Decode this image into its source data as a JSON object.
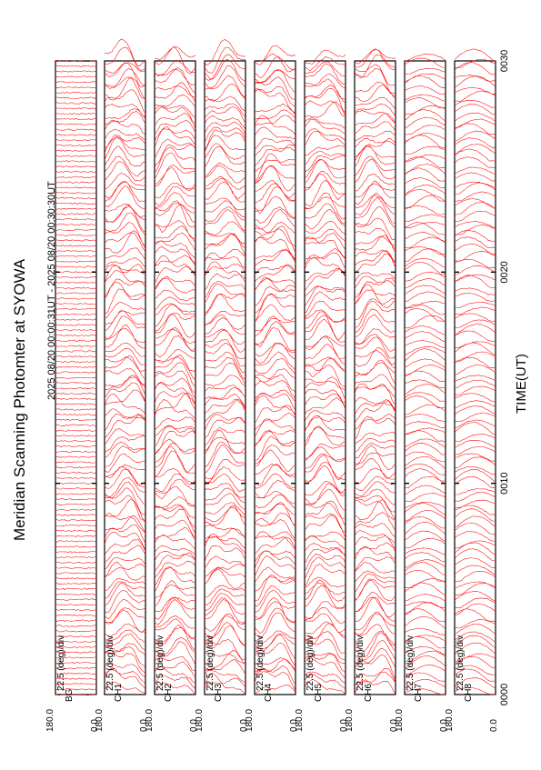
{
  "page": {
    "title": "Meridian Scanning Photomter at SYOWA",
    "period": "2025 08/20 00:00:31UT - 2025 08/20 00:30:30UT",
    "xlabel": "TIME(UT)"
  },
  "chart_data": {
    "type": "line",
    "orientation": "rotated-90",
    "x_ticks": [
      "0000",
      "0010",
      "0020",
      "0030"
    ],
    "xlim": [
      "00:00",
      "00:30"
    ],
    "ylim": [
      0.0,
      180.0
    ],
    "y_scale_label": "22.5 (deg)/div",
    "series_color": "#ff0000",
    "panels": [
      {
        "channel": "BG",
        "y_top": "180.0",
        "y_bottom": "0.0",
        "scale": "22.5 (deg)/div"
      },
      {
        "channel": "CH1",
        "y_top": "180.0",
        "y_bottom": "0.0",
        "scale": "22.5 (deg)/div"
      },
      {
        "channel": "CH2",
        "y_top": "180.0",
        "y_bottom": "0.0",
        "scale": "22.5 (deg)/div"
      },
      {
        "channel": "CH3",
        "y_top": "180.0",
        "y_bottom": "0.0",
        "scale": "22.5 (deg)/div"
      },
      {
        "channel": "CH4",
        "y_top": "180.0",
        "y_bottom": "0.0",
        "scale": "22.5 (deg)/div"
      },
      {
        "channel": "CH5",
        "y_top": "180.0",
        "y_bottom": "0.0",
        "scale": "22.5 (deg)/div"
      },
      {
        "channel": "CH6",
        "y_top": "180.0",
        "y_bottom": "0.0",
        "scale": "22.5 (deg)/div"
      },
      {
        "channel": "CH7",
        "y_top": "180.0",
        "y_bottom": "0.0",
        "scale": "22.5 (deg)/div"
      },
      {
        "channel": "CH8",
        "y_top": "180.0",
        "y_bottom": "0.0",
        "scale": "22.5 (deg)/div"
      }
    ]
  }
}
